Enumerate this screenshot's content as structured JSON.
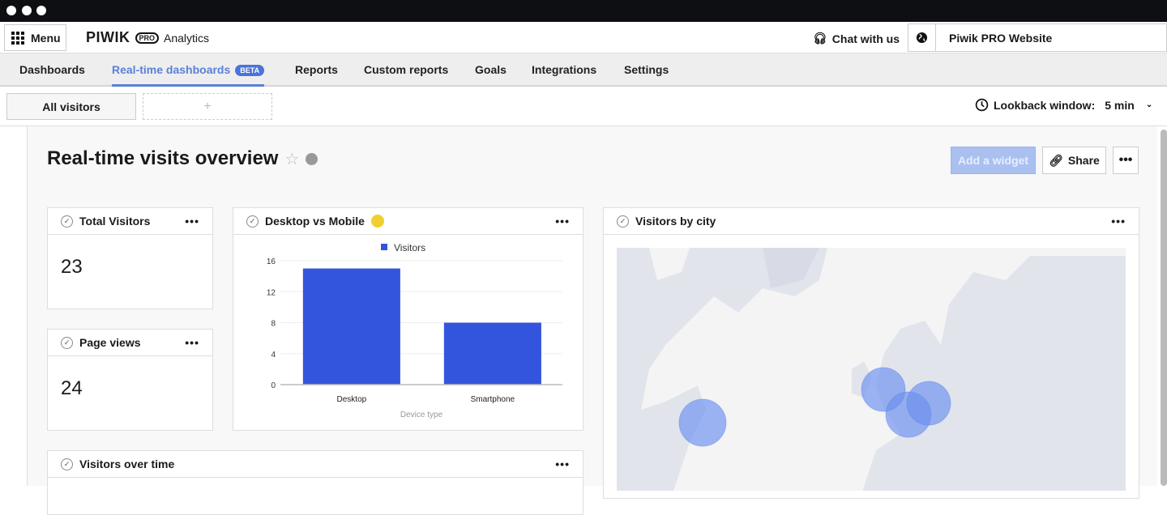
{
  "header": {
    "menu_label": "Menu",
    "logo_text": "PIWIK",
    "logo_pro": "PRO",
    "product": "Analytics",
    "chat_label": "Chat with us",
    "site_name": "Piwik PRO Website"
  },
  "nav": {
    "tabs": [
      {
        "label": "Dashboards"
      },
      {
        "label": "Real-time dashboards",
        "badge": "BETA",
        "active": true
      },
      {
        "label": "Reports"
      },
      {
        "label": "Custom reports"
      },
      {
        "label": "Goals"
      },
      {
        "label": "Integrations"
      },
      {
        "label": "Settings"
      }
    ]
  },
  "toolbar": {
    "segment": "All visitors",
    "add_label": "+",
    "lookback_label": "Lookback window:",
    "lookback_value": "5 min"
  },
  "dashboard": {
    "title": "Real-time visits overview",
    "add_widget": "Add a widget",
    "share": "Share",
    "more": "•••"
  },
  "widgets": {
    "total_visitors": {
      "title": "Total Visitors",
      "value": "23"
    },
    "page_views": {
      "title": "Page views",
      "value": "24"
    },
    "desktop_mobile": {
      "title": "Desktop vs Mobile"
    },
    "visitors_by_city": {
      "title": "Visitors by city"
    },
    "visitors_over_time": {
      "title": "Visitors over time"
    }
  },
  "colors": {
    "accent": "#5a80d8",
    "bar": "#3355dd",
    "bubble": "#6a8ff0"
  },
  "chart_data": {
    "type": "bar",
    "categories": [
      "Desktop",
      "Smartphone"
    ],
    "series": [
      {
        "name": "Visitors",
        "values": [
          15,
          8
        ]
      }
    ],
    "xlabel": "Device type",
    "ylabel": "",
    "ylim": [
      0,
      16
    ],
    "yticks": [
      0,
      4,
      8,
      12,
      16
    ],
    "grid": true,
    "legend": "top"
  }
}
